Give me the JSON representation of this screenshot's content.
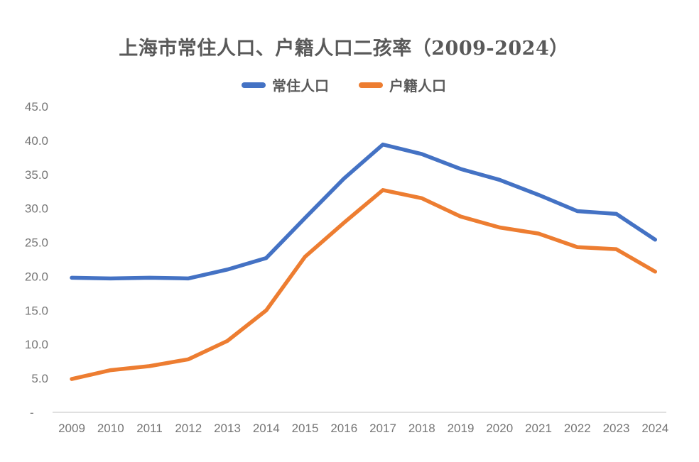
{
  "title": "上海市常住人口、户籍人口二孩率（2009-2024）",
  "legend": [
    {
      "label": "常住人口",
      "color": "#4472C4"
    },
    {
      "label": "户籍人口",
      "color": "#ED7D31"
    }
  ],
  "chart_data": {
    "type": "line",
    "title": "上海市常住人口、户籍人口二孩率（2009-2024）",
    "xlabel": "",
    "ylabel": "",
    "categories": [
      "2009",
      "2010",
      "2011",
      "2012",
      "2013",
      "2014",
      "2015",
      "2016",
      "2017",
      "2018",
      "2019",
      "2020",
      "2021",
      "2022",
      "2023",
      "2024"
    ],
    "series": [
      {
        "name": "常住人口",
        "color": "#4472C4",
        "values": [
          19.8,
          19.7,
          19.8,
          19.7,
          21.0,
          22.7,
          28.6,
          34.4,
          39.4,
          38.0,
          35.8,
          34.2,
          32.0,
          29.6,
          29.2,
          25.4
        ]
      },
      {
        "name": "户籍人口",
        "color": "#ED7D31",
        "values": [
          4.9,
          6.2,
          6.8,
          7.8,
          10.5,
          15.0,
          22.9,
          27.9,
          32.7,
          31.5,
          28.8,
          27.2,
          26.3,
          24.3,
          24.0,
          20.7
        ]
      }
    ],
    "ylim": [
      0,
      45
    ],
    "y_ticks": [
      {
        "value": 0,
        "label": "-"
      },
      {
        "value": 5,
        "label": "5.0"
      },
      {
        "value": 10,
        "label": "10.0"
      },
      {
        "value": 15,
        "label": "15.0"
      },
      {
        "value": 20,
        "label": "20.0"
      },
      {
        "value": 25,
        "label": "25.0"
      },
      {
        "value": 30,
        "label": "30.0"
      },
      {
        "value": 35,
        "label": "35.0"
      },
      {
        "value": 40,
        "label": "40.0"
      },
      {
        "value": 45,
        "label": "45.0"
      }
    ],
    "grid": false,
    "legend_position": "top",
    "line_width": 5.5,
    "axis_color": "#d6d6d6",
    "tick_color": "#767676",
    "title_color": "#595959"
  }
}
